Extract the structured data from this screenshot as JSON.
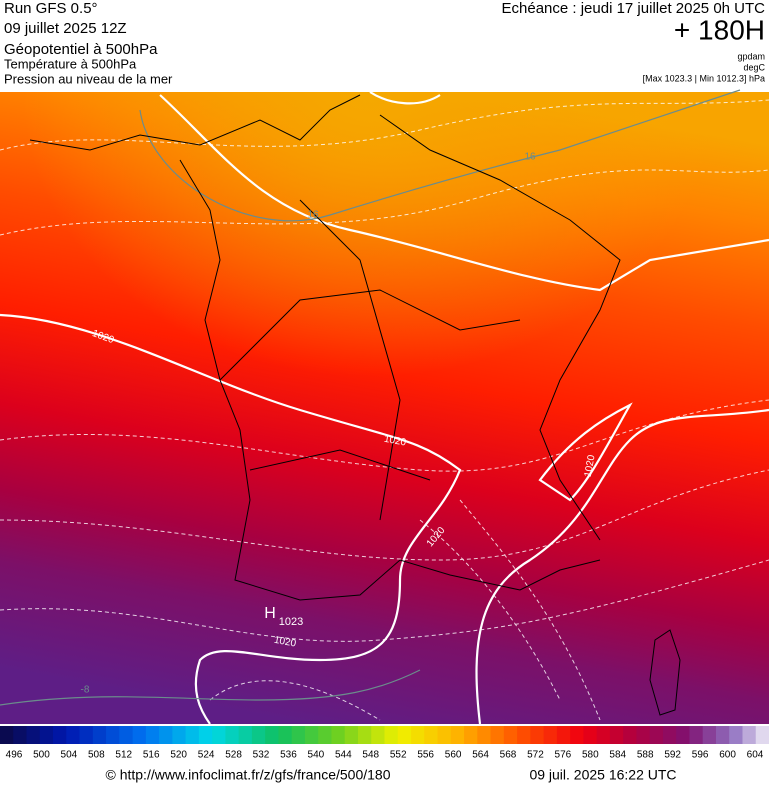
{
  "header": {
    "run": "Run GFS 0.5°",
    "date": "09 juillet 2025 12Z",
    "field": "Géopotentiel à 500hPa",
    "temp": "Température à 500hPa",
    "pressure": "Pression au niveau de la mer",
    "echeance": "Echéance : jeudi 17 juillet 2025 0h UTC",
    "offset": "+ 180H",
    "unit_geo": "gpdam",
    "unit_temp": "degC",
    "range": "[Max 1023.3 | Min 1012.3] hPa"
  },
  "map": {
    "labels": [
      "16",
      "16",
      "1020",
      "1020",
      "1020",
      "1020",
      "H",
      "1023",
      "1020",
      "-8"
    ]
  },
  "scale": {
    "values": [
      496,
      500,
      504,
      508,
      512,
      516,
      520,
      524,
      528,
      532,
      536,
      540,
      544,
      548,
      552,
      556,
      560,
      564,
      568,
      572,
      576,
      580,
      584,
      588,
      592,
      596,
      600,
      604
    ]
  },
  "footer": {
    "url": "© http://www.infoclimat.fr/z/gfs/france/500/180",
    "timestamp": "09 juil. 2025 16:22 UTC"
  }
}
